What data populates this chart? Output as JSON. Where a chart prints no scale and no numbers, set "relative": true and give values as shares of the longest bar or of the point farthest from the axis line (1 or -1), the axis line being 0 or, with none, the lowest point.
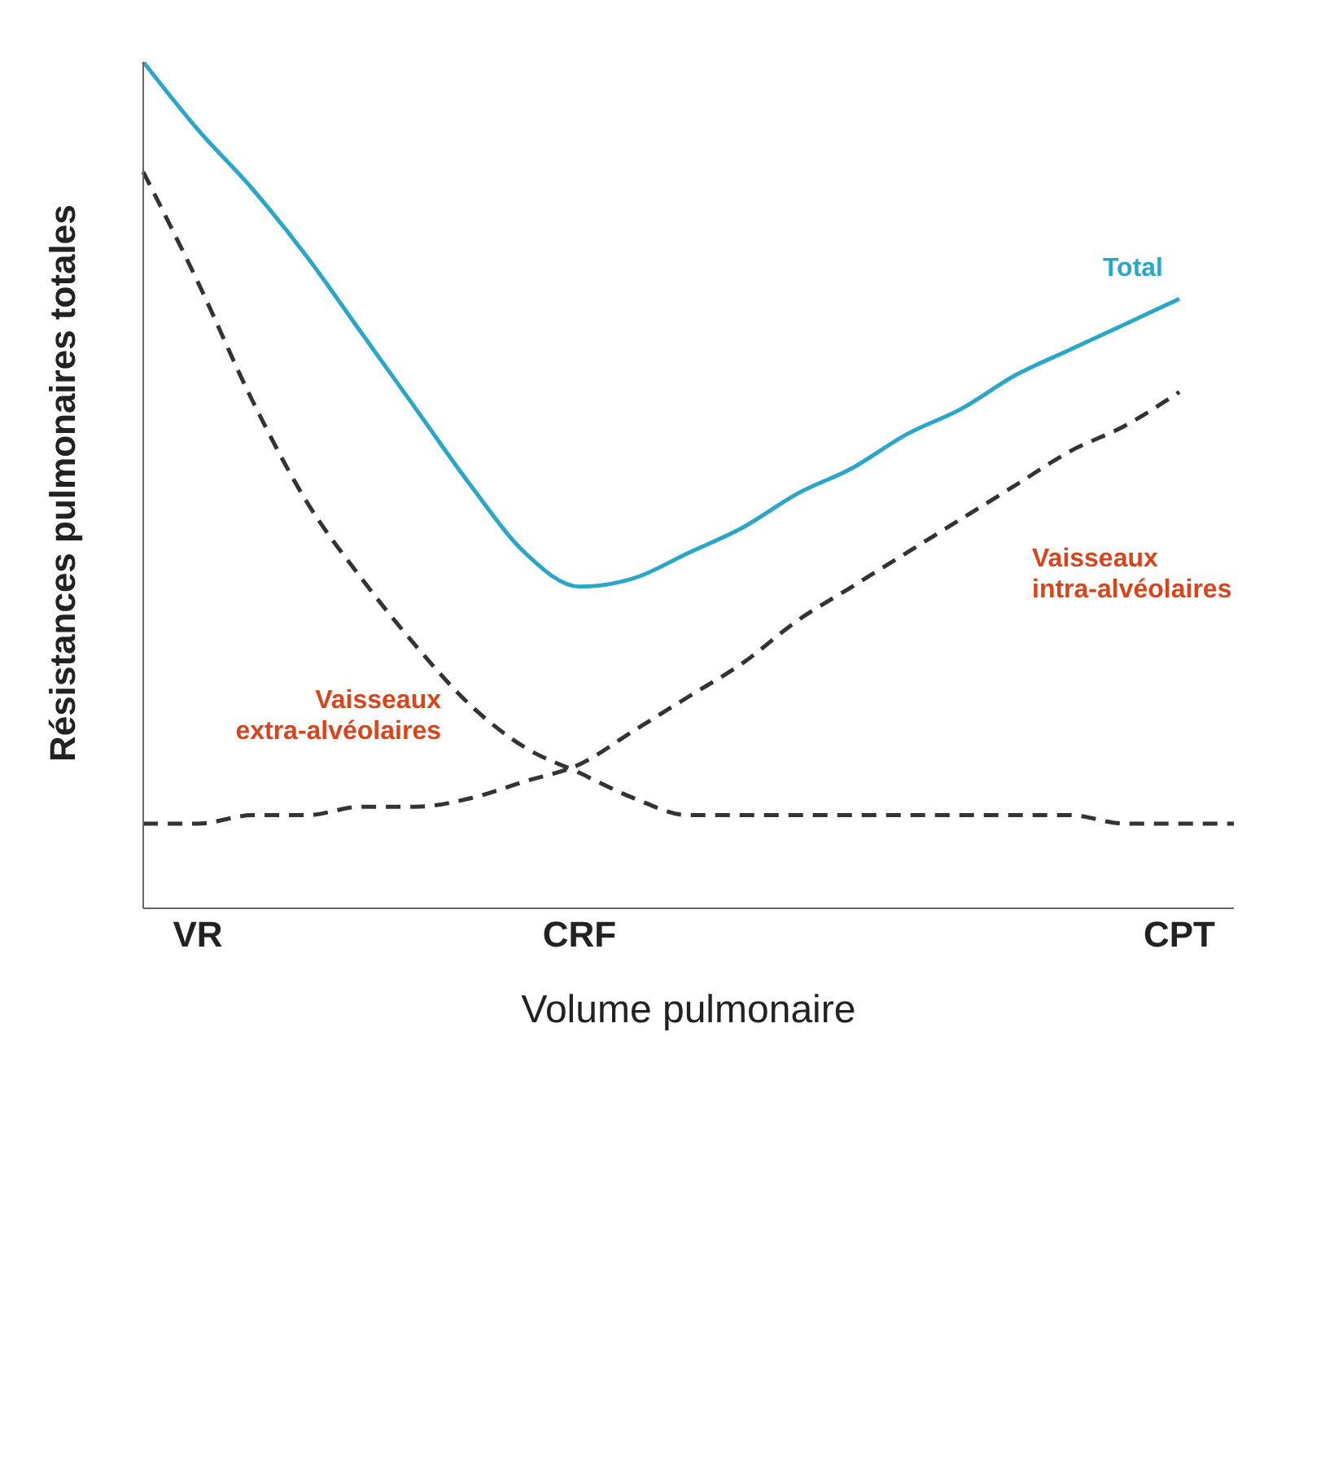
{
  "chart_data": {
    "type": "line",
    "xlabel": "Volume pulmonaire",
    "ylabel": "Résistances pulmonaires totales",
    "relative": true,
    "categories": [
      null,
      "VR",
      null,
      null,
      null,
      null,
      null,
      null,
      "CRF",
      null,
      null,
      null,
      null,
      null,
      null,
      null,
      null,
      null,
      null,
      "CPT",
      null
    ],
    "grid": false,
    "legend": false,
    "marker": "none",
    "series": [
      {
        "name": "Total",
        "color": "#2aa6c8",
        "line_style": "solid",
        "values": [
          1.0,
          0.92,
          0.85,
          0.77,
          0.68,
          0.59,
          0.5,
          0.42,
          0.38,
          0.39,
          0.42,
          0.45,
          0.49,
          0.52,
          0.56,
          0.59,
          0.63,
          0.66,
          0.69,
          0.72,
          null
        ]
      },
      {
        "name": "Vaisseaux intra-alvéolaires",
        "color": "#333333",
        "line_style": "dashed",
        "values": [
          0.1,
          0.1,
          0.11,
          0.11,
          0.12,
          0.12,
          0.13,
          0.15,
          0.17,
          0.21,
          0.25,
          0.29,
          0.34,
          0.38,
          0.42,
          0.46,
          0.5,
          0.54,
          0.57,
          0.61,
          null
        ]
      },
      {
        "name": "Vaisseaux extra-alvéolaires",
        "color": "#333333",
        "line_style": "dashed",
        "values": [
          0.87,
          0.74,
          0.6,
          0.48,
          0.39,
          0.31,
          0.24,
          0.19,
          0.16,
          0.13,
          0.11,
          0.11,
          0.11,
          0.11,
          0.11,
          0.11,
          0.11,
          0.11,
          0.1,
          0.1,
          0.1
        ]
      }
    ]
  }
}
